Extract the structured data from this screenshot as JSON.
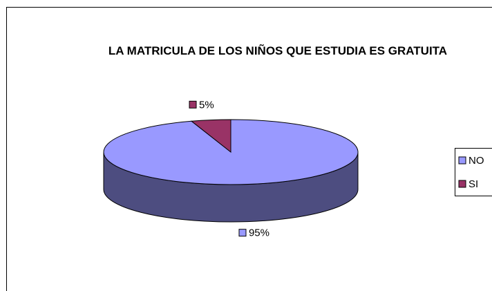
{
  "chart_data": {
    "type": "pie",
    "title": "LA MATRICULA DE LOS NIÑOS QUE ESTUDIA ES GRATUITA",
    "categories": [
      "NO",
      "SI"
    ],
    "values": [
      95,
      5
    ],
    "value_labels": [
      "95%",
      "5%"
    ],
    "colors": [
      "#9999ff",
      "#993366"
    ],
    "legend": "right"
  }
}
